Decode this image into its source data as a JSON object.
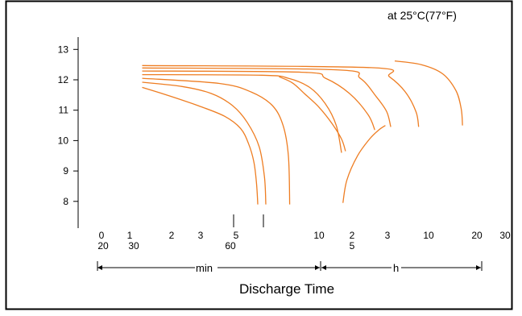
{
  "chart_data": {
    "type": "line",
    "title": "",
    "condition_note": "at 25°C(77°F)",
    "xlabel": "Discharge Time",
    "ylabel": "",
    "y_scale": "linear",
    "ylim": [
      7,
      13.5
    ],
    "y_ticks": [
      "13",
      "12",
      "11",
      "10",
      "9",
      "8"
    ],
    "x_scale": "log",
    "x_tick_labels_upper": [
      "0",
      "1",
      "2",
      "3",
      "5",
      "10",
      "2",
      "3",
      "10",
      "20",
      "30"
    ],
    "x_tick_labels_lower": [
      "20",
      "30",
      "60",
      "5"
    ],
    "unit_min_label": "min",
    "unit_h_label": "h",
    "grid": false,
    "legend": "none",
    "series": [
      {
        "x": [
          0.05,
          0.16,
          0.26,
          0.36,
          0.42,
          0.45,
          0.47,
          0.48,
          0.485
        ],
        "y": [
          11.75,
          11.45,
          11.15,
          10.8,
          10.4,
          9.9,
          9.3,
          8.6,
          7.9
        ]
      },
      {
        "x": [
          0.05,
          0.2,
          0.31,
          0.39,
          0.445,
          0.49,
          0.51,
          0.515
        ],
        "y": [
          11.92,
          11.78,
          11.55,
          11.15,
          10.6,
          9.8,
          8.8,
          7.9
        ]
      },
      {
        "x": [
          0.05,
          0.34,
          0.46,
          0.54,
          0.58,
          0.6,
          0.605
        ],
        "y": [
          12.05,
          11.88,
          11.6,
          11.15,
          10.5,
          9.5,
          7.9
        ]
      },
      {
        "x": [
          0.565,
          0.615,
          0.66,
          0.715,
          0.765,
          0.8,
          0.815
        ],
        "y": [
          12.1,
          11.9,
          11.55,
          11.1,
          10.55,
          10.05,
          9.65
        ]
      },
      {
        "x": [
          0.05,
          0.5,
          0.6,
          0.68,
          0.74,
          0.78,
          0.8
        ],
        "y": [
          12.17,
          12.15,
          12.05,
          11.75,
          11.2,
          10.5,
          9.6
        ]
      },
      {
        "x": [
          0.05,
          0.65,
          0.74,
          0.83,
          0.9,
          0.925
        ],
        "y": [
          12.29,
          12.25,
          12.05,
          11.55,
          10.85,
          10.35
        ]
      },
      {
        "x": [
          0.05,
          0.78,
          0.87,
          0.93,
          0.97,
          0.985
        ],
        "y": [
          12.39,
          12.33,
          12.05,
          11.45,
          10.95,
          10.45
        ]
      },
      {
        "x": [
          0.05,
          0.91,
          0.98,
          1.04,
          1.08,
          1.09
        ],
        "y": [
          12.47,
          12.4,
          12.1,
          11.6,
          10.95,
          10.45
        ]
      },
      {
        "x": [
          1.0,
          1.1,
          1.18,
          1.23,
          1.25,
          1.255
        ],
        "y": [
          12.62,
          12.5,
          12.2,
          11.65,
          11.05,
          10.5
        ]
      },
      {
        "x": [
          0.805,
          0.82,
          0.86,
          0.905,
          0.94,
          0.965
        ],
        "y": [
          7.95,
          8.7,
          9.5,
          10.05,
          10.35,
          10.5
        ]
      }
    ]
  }
}
